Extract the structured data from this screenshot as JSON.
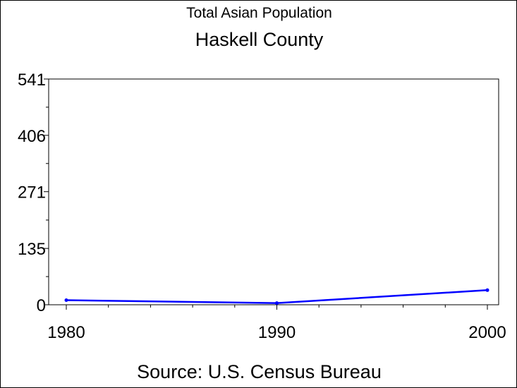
{
  "chart_data": {
    "type": "line",
    "title": "Total Asian Population",
    "subtitle": "Haskell County",
    "source": "Source: U.S. Census Bureau",
    "x": [
      1980,
      1990,
      2000
    ],
    "series": [
      {
        "values": [
          11,
          4,
          35
        ],
        "color": "#0000ff"
      }
    ],
    "xlim": [
      1980,
      2000
    ],
    "ylim": [
      0,
      541
    ],
    "x_ticks": [
      "1980",
      "1990",
      "2000"
    ],
    "y_ticks": [
      "0",
      "135",
      "271",
      "406",
      "541"
    ],
    "y_tick_values": [
      0,
      135,
      271,
      406,
      541
    ],
    "grid": false
  }
}
